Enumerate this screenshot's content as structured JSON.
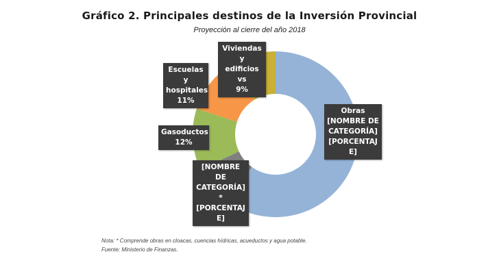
{
  "title": "Gráfico 2.  Principales destinos de la Inversión Provincial",
  "subtitle": "Proyección al cierre  del año 2018",
  "note": "Nota: * Comprende obras en cloacas, cuencias hídricas, acueductos y agua potable.",
  "source": "Fuente: Ministerio de Finanzas.",
  "chart_data": {
    "type": "pie",
    "donut": true,
    "slices": [
      {
        "label_lines": [
          "Obras",
          "[NOMBRE DE",
          "CATEGORÍA]",
          "[PORCENTAJ",
          "E]"
        ],
        "value": 60,
        "color": "#95b3d7"
      },
      {
        "label_lines": [
          "[NOMBRE DE",
          "CATEGORÍA]",
          "*",
          "[PORCENTAJ",
          "E]"
        ],
        "value": 8,
        "color": "#7f7f7f"
      },
      {
        "label_lines": [
          "Gasoductos",
          "12%"
        ],
        "value": 12,
        "color": "#9bbb59"
      },
      {
        "label_lines": [
          "Escuelas y",
          "hospitales",
          "11%"
        ],
        "value": 11,
        "color": "#f79646"
      },
      {
        "label_lines": [
          "Viviendas y",
          "edificios vs",
          "9%"
        ],
        "value": 9,
        "color": "#c9b037"
      }
    ]
  }
}
